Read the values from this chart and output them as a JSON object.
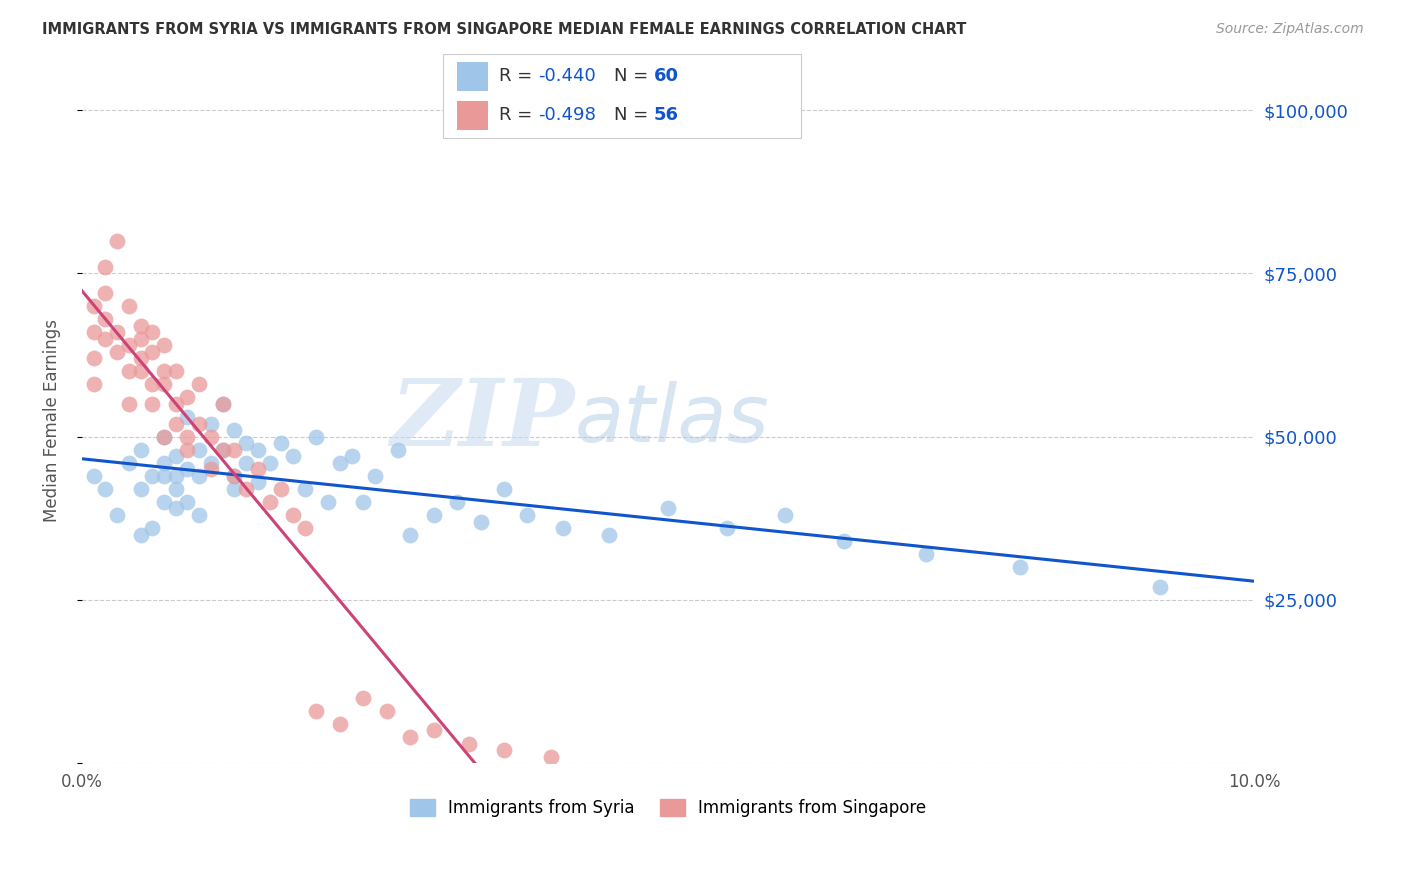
{
  "title": "IMMIGRANTS FROM SYRIA VS IMMIGRANTS FROM SINGAPORE MEDIAN FEMALE EARNINGS CORRELATION CHART",
  "source": "Source: ZipAtlas.com",
  "ylabel": "Median Female Earnings",
  "xlim": [
    0.0,
    0.1
  ],
  "ylim": [
    0,
    105000
  ],
  "yticks": [
    0,
    25000,
    50000,
    75000,
    100000
  ],
  "ytick_labels": [
    "",
    "$25,000",
    "$50,000",
    "$75,000",
    "$100,000"
  ],
  "xticks": [
    0.0,
    0.02,
    0.04,
    0.06,
    0.08,
    0.1
  ],
  "xtick_labels": [
    "0.0%",
    "",
    "",
    "",
    "",
    "10.0%"
  ],
  "series": [
    {
      "name": "Immigrants from Syria",
      "color": "#9fc5e8",
      "line_color": "#1155cc",
      "R": -0.44,
      "N": 60,
      "x": [
        0.001,
        0.002,
        0.003,
        0.004,
        0.005,
        0.005,
        0.005,
        0.006,
        0.006,
        0.007,
        0.007,
        0.007,
        0.007,
        0.008,
        0.008,
        0.008,
        0.008,
        0.009,
        0.009,
        0.009,
        0.01,
        0.01,
        0.01,
        0.011,
        0.011,
        0.012,
        0.012,
        0.013,
        0.013,
        0.013,
        0.014,
        0.014,
        0.015,
        0.015,
        0.016,
        0.017,
        0.018,
        0.019,
        0.02,
        0.021,
        0.022,
        0.023,
        0.024,
        0.025,
        0.027,
        0.028,
        0.03,
        0.032,
        0.034,
        0.036,
        0.038,
        0.041,
        0.045,
        0.05,
        0.055,
        0.06,
        0.065,
        0.072,
        0.08,
        0.092
      ],
      "y": [
        44000,
        42000,
        38000,
        46000,
        48000,
        35000,
        42000,
        44000,
        36000,
        50000,
        46000,
        40000,
        44000,
        42000,
        47000,
        39000,
        44000,
        53000,
        45000,
        40000,
        48000,
        44000,
        38000,
        52000,
        46000,
        55000,
        48000,
        51000,
        44000,
        42000,
        49000,
        46000,
        48000,
        43000,
        46000,
        49000,
        47000,
        42000,
        50000,
        40000,
        46000,
        47000,
        40000,
        44000,
        48000,
        35000,
        38000,
        40000,
        37000,
        42000,
        38000,
        36000,
        35000,
        39000,
        36000,
        38000,
        34000,
        32000,
        30000,
        27000
      ]
    },
    {
      "name": "Immigrants from Singapore",
      "color": "#ea9999",
      "line_color": "#cc4477",
      "R": -0.498,
      "N": 56,
      "x": [
        0.001,
        0.001,
        0.001,
        0.001,
        0.002,
        0.002,
        0.002,
        0.002,
        0.003,
        0.003,
        0.003,
        0.004,
        0.004,
        0.004,
        0.004,
        0.005,
        0.005,
        0.005,
        0.005,
        0.006,
        0.006,
        0.006,
        0.006,
        0.007,
        0.007,
        0.007,
        0.007,
        0.008,
        0.008,
        0.008,
        0.009,
        0.009,
        0.009,
        0.01,
        0.01,
        0.011,
        0.011,
        0.012,
        0.012,
        0.013,
        0.013,
        0.014,
        0.015,
        0.016,
        0.017,
        0.018,
        0.019,
        0.02,
        0.022,
        0.024,
        0.026,
        0.028,
        0.03,
        0.033,
        0.036,
        0.04
      ],
      "y": [
        58000,
        62000,
        66000,
        70000,
        65000,
        68000,
        72000,
        76000,
        63000,
        66000,
        80000,
        60000,
        64000,
        55000,
        70000,
        62000,
        67000,
        60000,
        65000,
        58000,
        63000,
        66000,
        55000,
        60000,
        64000,
        50000,
        58000,
        55000,
        52000,
        60000,
        50000,
        56000,
        48000,
        52000,
        58000,
        50000,
        45000,
        48000,
        55000,
        44000,
        48000,
        42000,
        45000,
        40000,
        42000,
        38000,
        36000,
        8000,
        6000,
        10000,
        8000,
        4000,
        5000,
        3000,
        2000,
        1000
      ]
    }
  ],
  "background_color": "#ffffff",
  "grid_color": "#cccccc",
  "title_color": "#333333",
  "right_axis_color": "#1155cc",
  "watermark_zip_color": "#c8d8f0",
  "watermark_atlas_color": "#b0c8e8"
}
